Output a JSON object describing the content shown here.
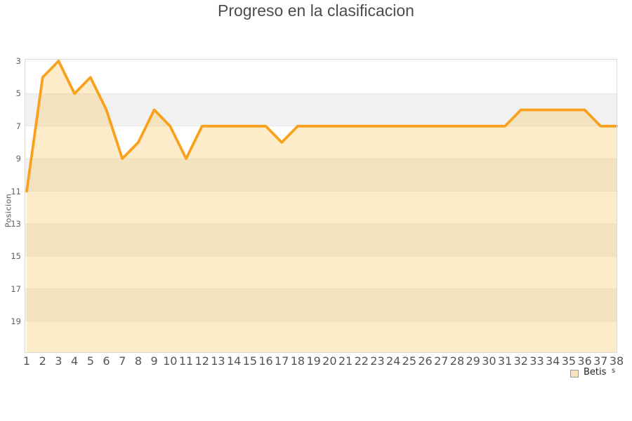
{
  "title": "Progreso en la clasificacion",
  "y_axis": {
    "label": "Posicion",
    "ticks": [
      3,
      5,
      7,
      9,
      11,
      13,
      15,
      17,
      19
    ]
  },
  "legend": {
    "label": "Betis",
    "fragment": "s"
  },
  "colors": {
    "line": "#f9a01c",
    "fill": "#f8bb3e",
    "fill_opacity": 0.28,
    "band_light": "#ffffff",
    "band_dark": "#f1f1f1",
    "gridline": "rgba(0,0,0,0.055)",
    "plot_border": "#d9d9d9",
    "tick_text": "#606060",
    "title_text": "#4c4c4c"
  },
  "chart_data": {
    "type": "area",
    "title": "Progreso en la clasificacion",
    "xlabel": "",
    "ylabel": "Posicion",
    "x": [
      1,
      2,
      3,
      4,
      5,
      6,
      7,
      8,
      9,
      10,
      11,
      12,
      13,
      14,
      15,
      16,
      17,
      18,
      19,
      20,
      21,
      22,
      23,
      24,
      25,
      26,
      27,
      28,
      29,
      30,
      31,
      32,
      33,
      34,
      35,
      36,
      37,
      38
    ],
    "series": [
      {
        "name": "Betis",
        "values": [
          11,
          4,
          3,
          5,
          4,
          6,
          9,
          8,
          6,
          7,
          9,
          7,
          7,
          7,
          7,
          7,
          8,
          7,
          7,
          7,
          7,
          7,
          7,
          7,
          7,
          7,
          7,
          7,
          7,
          7,
          7,
          6,
          6,
          6,
          6,
          6,
          7,
          7
        ]
      }
    ],
    "y_ticks": [
      3,
      5,
      7,
      9,
      11,
      13,
      15,
      17,
      19
    ],
    "y_axis_inverted": true,
    "ylim": [
      3,
      21
    ],
    "grid": "horizontal-bands-every-2",
    "legend_position": "bottom-right",
    "markers": false
  }
}
